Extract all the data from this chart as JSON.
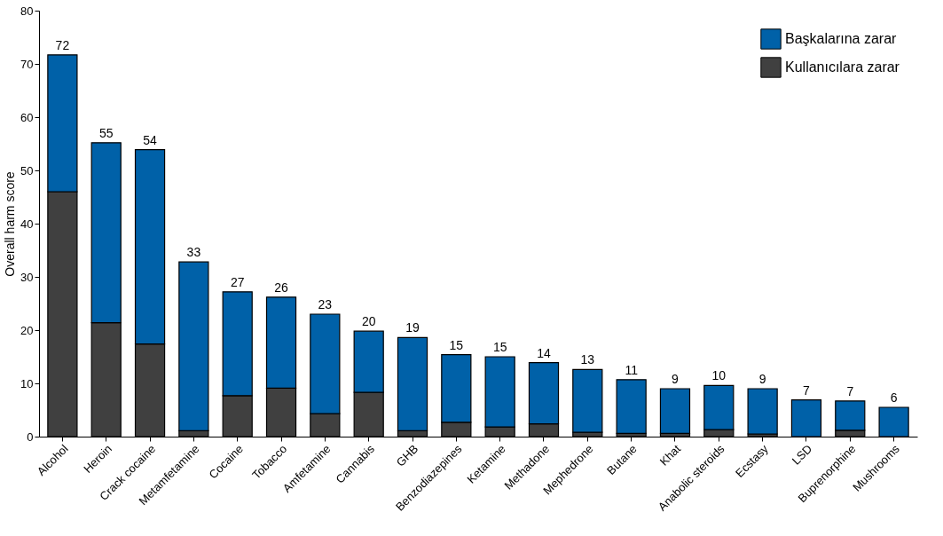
{
  "chart_data": {
    "type": "bar",
    "stacked": true,
    "ylabel": "Overall harm score",
    "categories": [
      "Alcohol",
      "Heroin",
      "Crack cocaine",
      "Metamfetamine",
      "Cocaine",
      "Tobacco",
      "Amfetamine",
      "Cannabis",
      "GHB",
      "Benzodiazepines",
      "Ketamine",
      "Methadone",
      "Mephedrone",
      "Butane",
      "Khat",
      "Anabolic steroids",
      "Ecstasy",
      "LSD",
      "Buprenorphine",
      "Mushrooms"
    ],
    "series": [
      {
        "name": "Kullanıcılara zarar",
        "color": "#404040",
        "values": [
          46,
          21.4,
          17.4,
          1.1,
          7.7,
          9.1,
          4.3,
          8.3,
          1.1,
          2.7,
          1.8,
          2.4,
          0.8,
          0.6,
          0.6,
          1.3,
          0.5,
          null,
          1.2,
          null
        ]
      },
      {
        "name": "Başkalarına zarar",
        "color": "#0061a8",
        "values": [
          25.7,
          33.8,
          36.5,
          31.7,
          19.5,
          17.1,
          18.7,
          11.5,
          17.5,
          12.7,
          13.2,
          11.5,
          11.8,
          10.1,
          8.4,
          8.3,
          8.5,
          6.9,
          5.5,
          5.5
        ]
      }
    ],
    "totals": [
      "72",
      "55",
      "54",
      "33",
      "27",
      "26",
      "23",
      "20",
      "19",
      "15",
      "15",
      "14",
      "13",
      "11",
      "9",
      "10",
      "9",
      "7",
      "7",
      "6"
    ],
    "ylim": [
      0,
      80
    ],
    "yticks": [
      0,
      10,
      20,
      30,
      40,
      50,
      60,
      70,
      80
    ],
    "legend": "top right"
  }
}
